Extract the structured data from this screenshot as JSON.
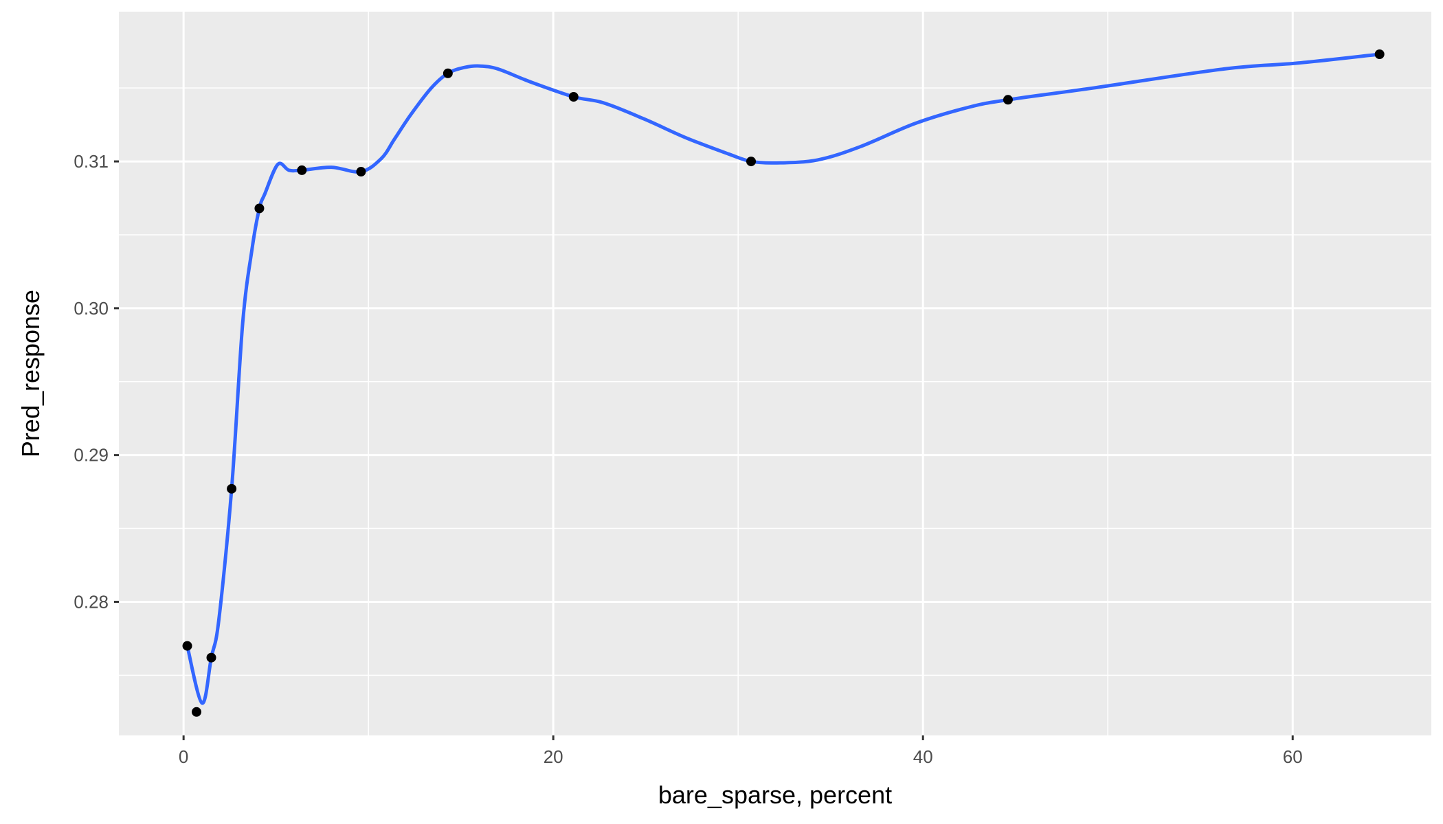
{
  "chart_data": {
    "type": "scatter",
    "xlabel": "bare_sparse, percent",
    "ylabel": "Pred_response",
    "xlim": [
      -3.5,
      67.5
    ],
    "ylim": [
      0.2709,
      0.3202
    ],
    "x_ticks": [
      0,
      20,
      40,
      60
    ],
    "x_tick_labels": [
      "0",
      "20",
      "40",
      "60"
    ],
    "y_ticks": [
      0.28,
      0.29,
      0.3,
      0.31
    ],
    "y_tick_labels": [
      "0.28",
      "0.29",
      "0.30",
      "0.31"
    ],
    "grid": true,
    "legend": "none",
    "colors": {
      "panel": "#ebebeb",
      "grid": "#ffffff",
      "points": "#000000",
      "smooth_line": "#3366ff"
    },
    "series": [
      {
        "kind": "points",
        "x": [
          0.2,
          0.7,
          1.5,
          2.6,
          4.1,
          6.4,
          9.6,
          14.3,
          21.1,
          30.7,
          44.6,
          64.7
        ],
        "y": [
          0.277,
          0.2725,
          0.2762,
          0.2877,
          0.3068,
          0.3094,
          0.3093,
          0.316,
          0.3144,
          0.31,
          0.3142,
          0.3173
        ]
      },
      {
        "kind": "smooth-line",
        "x": [
          0.2,
          1.0,
          1.5,
          1.9,
          2.6,
          3.2,
          3.7,
          4.1,
          4.4,
          5.1,
          5.7,
          6.4,
          8.0,
          9.6,
          10.7,
          11.4,
          12.3,
          13.4,
          14.3,
          15.2,
          16.0,
          17.0,
          18.8,
          21.1,
          22.7,
          24.9,
          27.2,
          29.5,
          30.7,
          32.1,
          34.3,
          36.6,
          39.6,
          42.5,
          44.6,
          49.2,
          56.3,
          60.3,
          64.7
        ],
        "y": [
          0.277,
          0.2731,
          0.2762,
          0.2787,
          0.2877,
          0.299,
          0.304,
          0.3068,
          0.3078,
          0.3098,
          0.3094,
          0.3094,
          0.3096,
          0.3093,
          0.3102,
          0.3115,
          0.3132,
          0.315,
          0.316,
          0.3164,
          0.3165,
          0.3163,
          0.3154,
          0.3144,
          0.314,
          0.3129,
          0.3116,
          0.3105,
          0.31,
          0.3099,
          0.3101,
          0.311,
          0.3126,
          0.3137,
          0.3142,
          0.315,
          0.3163,
          0.3167,
          0.3173
        ]
      }
    ]
  }
}
